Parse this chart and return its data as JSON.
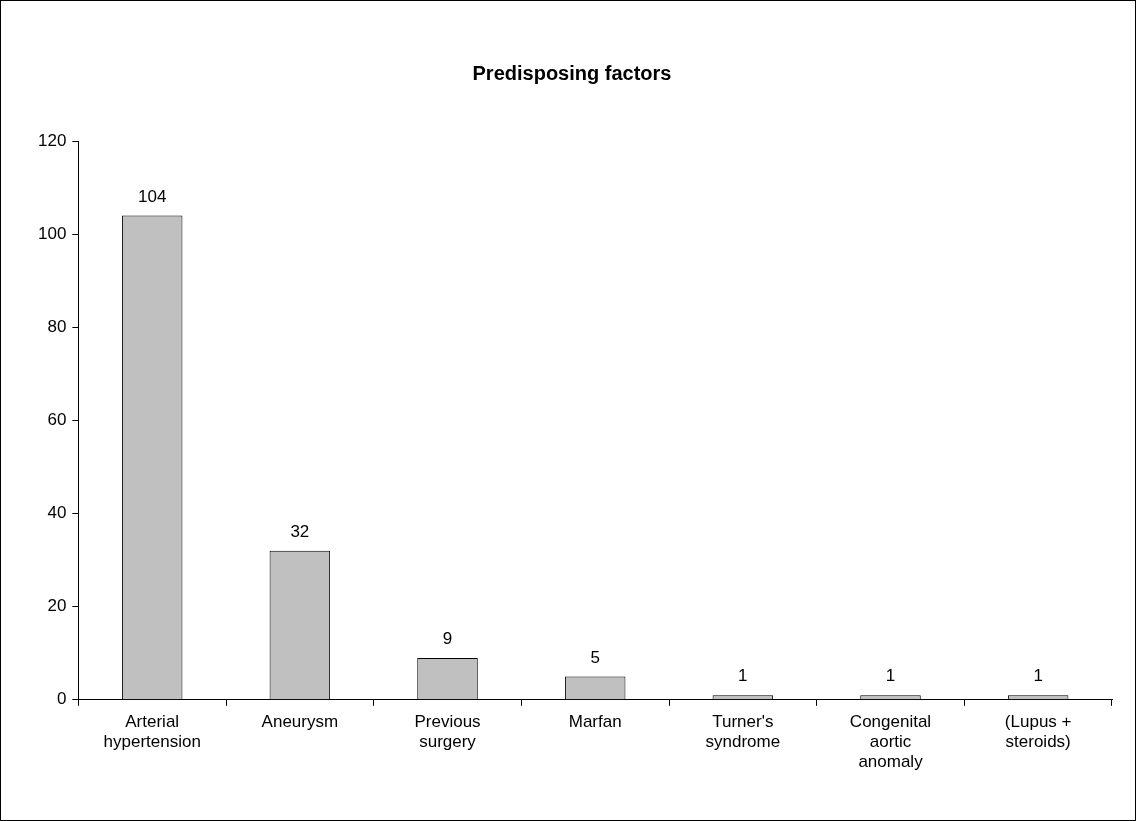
{
  "chart_data": {
    "type": "bar",
    "title": "Predisposing factors",
    "categories": [
      "Arterial hypertension",
      "Aneurysm",
      "Previous surgery",
      "Marfan",
      "Turner's syndrome",
      "Congenital aortic anomaly",
      "(Lupus + steroids)"
    ],
    "values": [
      104,
      32,
      9,
      5,
      1,
      1,
      1
    ],
    "color": "#c0c0c0",
    "ylim": [
      0,
      120
    ],
    "yticks": [
      0,
      20,
      40,
      60,
      80,
      100,
      120
    ],
    "grid": false,
    "data_labels": true
  }
}
